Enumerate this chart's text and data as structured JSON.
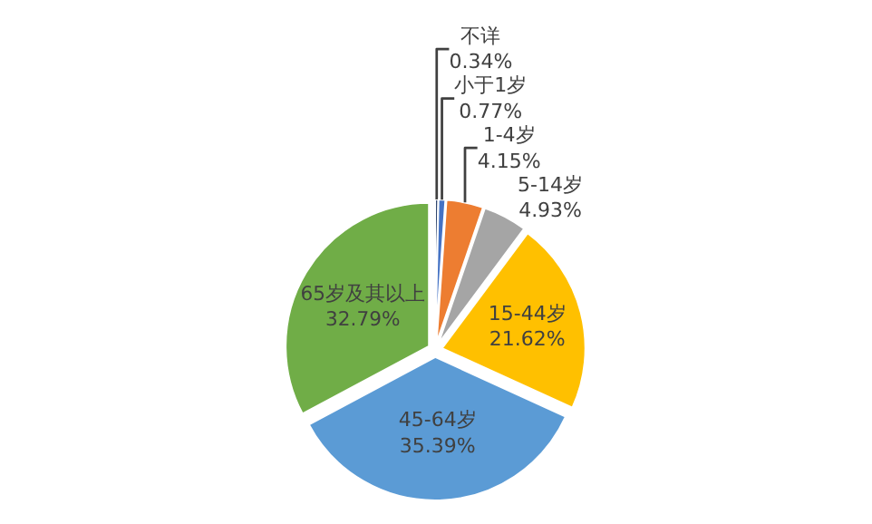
{
  "chart_data": {
    "type": "pie",
    "categories": [
      "不详",
      "小于1岁",
      "1-4岁",
      "5-14岁",
      "15-44岁",
      "45-64岁",
      "65岁及其以上"
    ],
    "values": [
      0.34,
      0.77,
      4.15,
      4.93,
      21.62,
      35.39,
      32.79
    ],
    "value_labels": [
      "0.34%",
      "0.77%",
      "4.15%",
      "4.93%",
      "21.62%",
      "35.39%",
      "32.79%"
    ],
    "colors": [
      "#1f3864",
      "#4472c4",
      "#ed7d31",
      "#a5a5a5",
      "#ffc000",
      "#5b9bd5",
      "#70ad47"
    ],
    "legend": false
  }
}
